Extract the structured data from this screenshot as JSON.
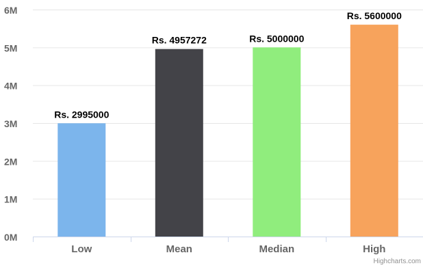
{
  "chart_data": {
    "type": "bar",
    "categories": [
      "Low",
      "Mean",
      "Median",
      "High"
    ],
    "values": [
      2995000,
      4957272,
      5000000,
      5600000
    ],
    "data_labels": [
      "Rs. 2995000",
      "Rs. 4957272",
      "Rs. 5000000",
      "Rs. 5600000"
    ],
    "colors": [
      "#7cb5ec",
      "#434348",
      "#90ed7d",
      "#f7a35c"
    ],
    "y_ticks": [
      0,
      1000000,
      2000000,
      3000000,
      4000000,
      5000000,
      6000000
    ],
    "y_tick_labels": [
      "0M",
      "1M",
      "2M",
      "3M",
      "4M",
      "5M",
      "6M"
    ],
    "ylim": [
      0,
      6000000
    ],
    "grid": true,
    "legend": "none",
    "gridline_color": "#e6e6e6",
    "axis_color": "#ccd6eb"
  },
  "credits": "Highcharts.com"
}
